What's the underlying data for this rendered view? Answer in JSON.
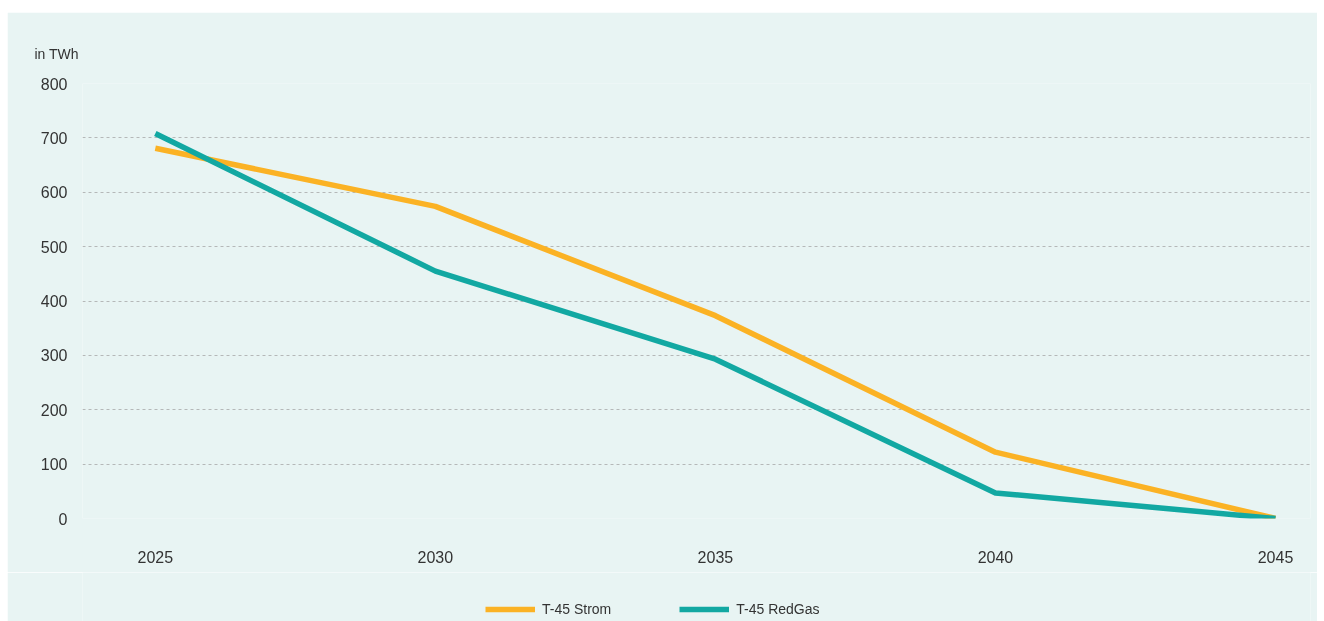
{
  "chart_data": {
    "type": "line",
    "ylabel": "in TWh",
    "categories": [
      "2025",
      "2030",
      "2035",
      "2040",
      "2045"
    ],
    "series": [
      {
        "name": "T-45 Strom",
        "color": "#fbb224",
        "values": [
          681,
          574,
          373,
          122,
          0
        ]
      },
      {
        "name": "T-45 RedGas",
        "color": "#12a8a2",
        "values": [
          708,
          455,
          293,
          47,
          0
        ]
      }
    ],
    "ylim": [
      0,
      800
    ],
    "yticks": [
      0,
      100,
      200,
      300,
      400,
      500,
      600,
      700,
      800
    ],
    "grid": "y",
    "legend": "bottom",
    "line_style": "solid"
  }
}
